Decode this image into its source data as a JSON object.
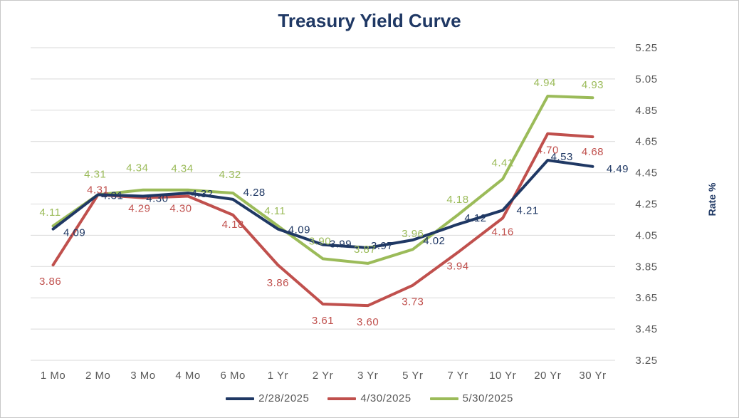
{
  "chart_data": {
    "type": "line",
    "title": "Treasury Yield Curve",
    "xlabel": "",
    "ylabel": "Rate %",
    "categories": [
      "1 Mo",
      "2 Mo",
      "3 Mo",
      "4 Mo",
      "6 Mo",
      "1 Yr",
      "2 Yr",
      "3 Yr",
      "5 Yr",
      "7 Yr",
      "10 Yr",
      "20 Yr",
      "30 Yr"
    ],
    "ylim": [
      3.25,
      5.25
    ],
    "yticks": [
      "3.25",
      "3.45",
      "3.65",
      "3.85",
      "4.05",
      "4.25",
      "4.45",
      "4.65",
      "4.85",
      "5.05",
      "5.25"
    ],
    "grid": true,
    "legend_position": "bottom",
    "series": [
      {
        "name": "2/28/2025",
        "color": "#1f3864",
        "values": [
          4.09,
          4.31,
          4.3,
          4.32,
          4.28,
          4.09,
          3.99,
          3.97,
          4.02,
          4.12,
          4.21,
          4.53,
          4.49
        ],
        "labels": [
          "4.09",
          "4.31",
          "4.30",
          "4.32",
          "4.28",
          "4.09",
          "3.99",
          "3.97",
          "4.02",
          "4.12",
          "4.21",
          "4.53",
          "4.49"
        ]
      },
      {
        "name": "4/30/2025",
        "color": "#c0504d",
        "values": [
          3.86,
          4.31,
          4.29,
          4.3,
          4.18,
          3.86,
          3.61,
          3.6,
          3.73,
          3.94,
          4.16,
          4.7,
          4.68
        ],
        "labels": [
          "3.86",
          "4.31",
          "4.29",
          "4.30",
          "4.18",
          "3.86",
          "3.61",
          "3.60",
          "3.73",
          "3.94",
          "4.16",
          "4.70",
          "4.68"
        ]
      },
      {
        "name": "5/30/2025",
        "color": "#9bbb59",
        "values": [
          4.11,
          4.31,
          4.34,
          4.34,
          4.32,
          4.11,
          3.9,
          3.87,
          3.96,
          4.18,
          4.41,
          4.94,
          4.93
        ],
        "labels": [
          "4.11",
          "4.31",
          "4.34",
          "4.34",
          "4.32",
          "4.11",
          "3.90",
          "3.87",
          "3.96",
          "4.18",
          "4.41",
          "4.94",
          "4.93"
        ]
      }
    ]
  }
}
